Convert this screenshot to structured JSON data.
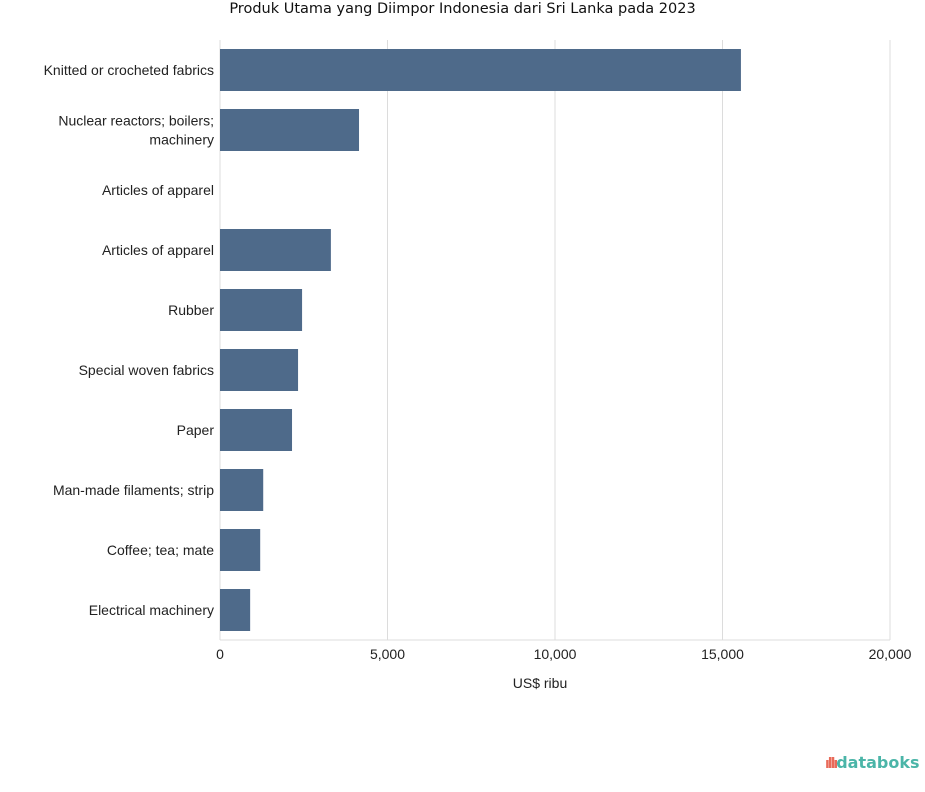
{
  "chart_data": {
    "type": "bar",
    "orientation": "horizontal",
    "title": "Produk Utama yang Diimpor Indonesia dari Sri Lanka pada 2023",
    "xlabel": "US$ ribu",
    "ylabel": "",
    "xlim": [
      0,
      20000
    ],
    "xticks": [
      0,
      5000,
      10000,
      15000,
      20000
    ],
    "xtick_labels": [
      "0",
      "5,000",
      "10,000",
      "15,000",
      "20,000"
    ],
    "grid": true,
    "categories": [
      [
        "Knitted or crocheted fabrics"
      ],
      [
        "Nuclear reactors; boilers;",
        "machinery"
      ],
      [
        "Articles of apparel"
      ],
      [
        "Articles of apparel"
      ],
      [
        "Rubber"
      ],
      [
        "Special woven fabrics"
      ],
      [
        "Paper"
      ],
      [
        "Man-made filaments; strip"
      ],
      [
        "Coffee; tea; mate"
      ],
      [
        "Electrical machinery"
      ]
    ],
    "values": [
      15550,
      4150,
      0,
      3310,
      2450,
      2330,
      2150,
      1290,
      1200,
      900
    ],
    "bar_color": "#4e6a8a"
  },
  "branding": {
    "logo_text": "databoks"
  }
}
